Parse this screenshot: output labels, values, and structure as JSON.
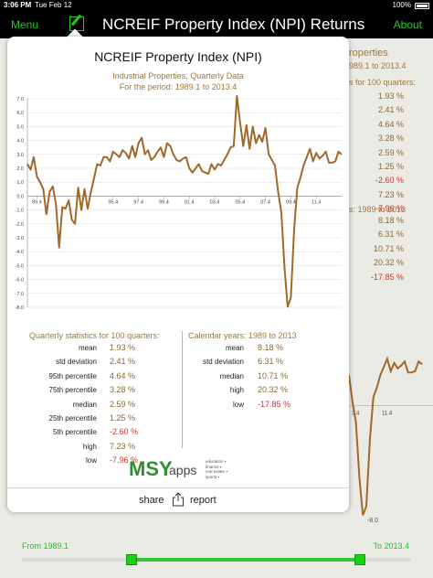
{
  "status_bar": {
    "time": "3:06 PM",
    "date": "Tue Feb 12",
    "battery": "100%"
  },
  "nav": {
    "menu": "Menu",
    "title": "NCREIF Property Index (NPI) Returns",
    "about": "About",
    "compose_icon": "compose-icon"
  },
  "background": {
    "header_line1": "roperties",
    "header_line2": "989.1 to 2013.4",
    "quarterly_header": "s for 100 quarters:",
    "quarterly_values": [
      "1.93 %",
      "2.41 %",
      "4.64 %",
      "3.28 %",
      "2.59 %",
      "1.25 %",
      "-2.60 %",
      "7.23 %",
      "-7.96 %"
    ],
    "calendar_header": "s: 1989 to 2013",
    "calendar_values": [
      "8.18 %",
      "6.31 %",
      "10.71 %",
      "20.32 %",
      "-17.85 %"
    ],
    "x_tick": "11.4",
    "x_tick2": "3.4",
    "y_tick": "-8.0"
  },
  "popover": {
    "title": "NCREIF Property Index (NPI)",
    "subtitle1": "Industrial Properties, Quarterly Data",
    "subtitle2": "For the period: 1989.1 to 2013.4",
    "quarterly_header": "Quarterly statistics for 100 quarters:",
    "calendar_header": "Calendar years: 1989 to 2013",
    "quarterly_stats": [
      {
        "label": "mean",
        "value": "1.93 %"
      },
      {
        "label": "std deviation",
        "value": "2.41 %"
      },
      {
        "label": "95th percentile",
        "value": "4.64 %"
      },
      {
        "label": "75th percentile",
        "value": "3.28 %"
      },
      {
        "label": "median",
        "value": "2.59 %"
      },
      {
        "label": "25th percentile",
        "value": "1.25 %"
      },
      {
        "label": "5th percentile",
        "value": "-2.60 %"
      },
      {
        "label": "high",
        "value": "7.23 %"
      },
      {
        "label": "low",
        "value": "-7.96 %"
      }
    ],
    "calendar_stats": [
      {
        "label": "mean",
        "value": "8.18 %"
      },
      {
        "label": "std deviation",
        "value": "6.31 %"
      },
      {
        "label": "median",
        "value": "10.71 %"
      },
      {
        "label": "high",
        "value": "20.32 %"
      },
      {
        "label": "low",
        "value": "-17.85 %"
      }
    ],
    "logo": {
      "brand": "MSY",
      "suffix": "apps",
      "tags": [
        "education",
        "finance",
        "real estate",
        "sports"
      ]
    },
    "share_label": "share",
    "report_label": "report"
  },
  "slider": {
    "from_label": "From 1989.1",
    "to_label": "To 2013.4"
  },
  "colors": {
    "accent_green": "#1ecb1e",
    "line_brown": "#a0692a",
    "label_gold": "#a0773a",
    "negative_red": "#d8302a"
  },
  "chart_data": {
    "type": "line",
    "title": "NCREIF Property Index (NPI)",
    "subtitle": "Industrial Properties, Quarterly Data",
    "ylim": [
      -8.0,
      7.0
    ],
    "yticks": [
      "7.0",
      "6.0",
      "5.0",
      "4.0",
      "3.0",
      "2.0",
      "1.0",
      "0.0",
      "-1.0",
      "-2.0",
      "-3.0",
      "-4.0",
      "-5.0",
      "-6.0",
      "-7.0",
      "-8.0"
    ],
    "xticks": [
      {
        "label": "89.4",
        "index": 3
      },
      {
        "label": "95.4",
        "index": 27
      },
      {
        "label": "97.4",
        "index": 35
      },
      {
        "label": "99.4",
        "index": 43
      },
      {
        "label": "01.4",
        "index": 51
      },
      {
        "label": "03.4",
        "index": 59
      },
      {
        "label": "05.4",
        "index": 67
      },
      {
        "label": "07.4",
        "index": 75
      },
      {
        "label": "09.4",
        "index": 83
      },
      {
        "label": "11.4",
        "index": 91
      }
    ],
    "series": [
      {
        "values": [
          2.3,
          1.9,
          2.8,
          1.4,
          1.0,
          0.5,
          -1.3,
          0.3,
          0.7,
          -0.6,
          -3.7,
          -0.8,
          -0.9,
          -0.3,
          -1.7,
          -2.0,
          0.6,
          -1.0,
          0.5,
          -0.9,
          0.3,
          1.3,
          2.3,
          2.2,
          2.8,
          2.8,
          2.5,
          3.2,
          3.0,
          2.8,
          3.3,
          3.1,
          2.7,
          3.6,
          2.8,
          3.8,
          4.2,
          3.0,
          3.3,
          2.6,
          2.8,
          3.2,
          3.5,
          2.8,
          3.8,
          3.6,
          3.0,
          2.6,
          2.5,
          2.7,
          2.8,
          2.0,
          1.7,
          2.0,
          2.3,
          1.8,
          1.7,
          1.6,
          2.3,
          1.9,
          2.3,
          2.2,
          2.6,
          3.0,
          3.5,
          3.6,
          7.2,
          5.3,
          3.6,
          5.1,
          3.4,
          5.0,
          3.8,
          4.4,
          3.9,
          4.9,
          3.0,
          2.6,
          2.2,
          0.3,
          -1.2,
          -5.2,
          -7.96,
          -7.3,
          -2.5,
          0.6,
          1.3,
          2.2,
          2.8,
          3.4,
          2.5,
          3.1,
          2.7,
          2.9,
          3.2,
          2.4,
          2.4,
          2.5,
          3.2,
          3.0
        ]
      }
    ]
  }
}
